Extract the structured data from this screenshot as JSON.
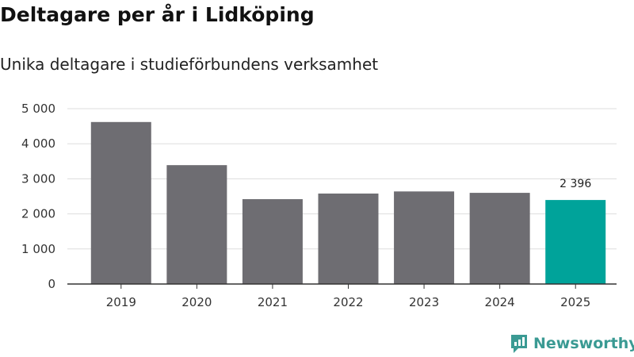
{
  "chart_data": {
    "type": "bar",
    "title": "Deltagare per år i Lidköping",
    "subtitle": "Unika deltagare i studieförbundens verksamhet",
    "categories": [
      "2019",
      "2020",
      "2021",
      "2022",
      "2023",
      "2024",
      "2025"
    ],
    "values": [
      4620,
      3390,
      2420,
      2580,
      2640,
      2600,
      2396
    ],
    "ylim": [
      0,
      5000
    ],
    "yticks": [
      0,
      1000,
      2000,
      3000,
      4000,
      5000
    ],
    "ytick_labels": [
      "0",
      "1 000",
      "2 000",
      "3 000",
      "4 000",
      "5 000"
    ],
    "grid": true,
    "colors": {
      "bar": "#6e6d72",
      "highlight": "#00a39a",
      "grid": "#dddddd",
      "axis": "#333333"
    },
    "highlight_index": 6,
    "annotations": [
      {
        "category": "2025",
        "text": "2 396"
      }
    ]
  },
  "brand": {
    "name": "Newsworthy",
    "color": "#3a9a93",
    "icon": "newsworthy-logo-icon"
  }
}
